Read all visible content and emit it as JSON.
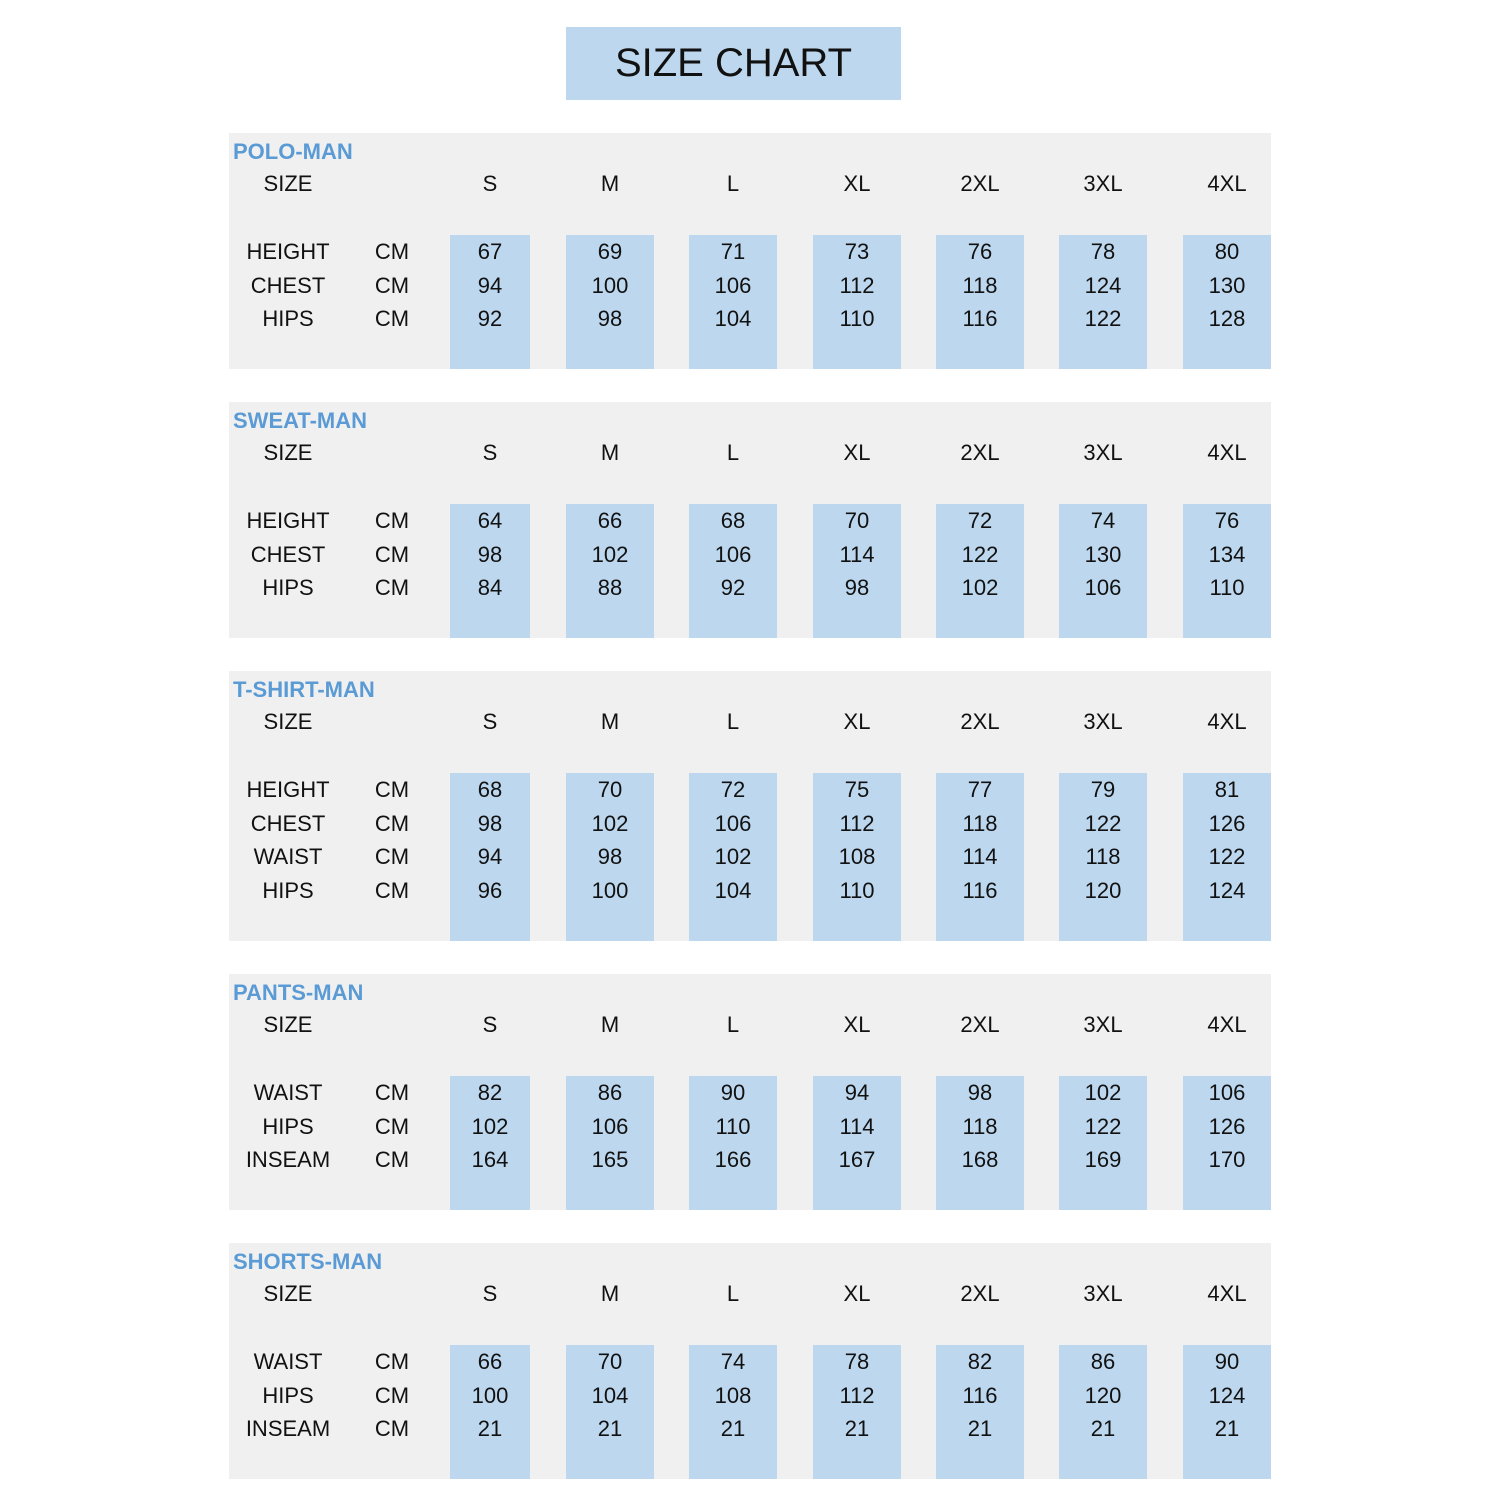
{
  "title": "SIZE CHART",
  "size_label": "SIZE",
  "sizes": [
    "S",
    "M",
    "L",
    "XL",
    "2XL",
    "3XL",
    "4XL"
  ],
  "colors": {
    "accent_blue": "#5b9bd5",
    "cell_blue": "#bdd7ee",
    "panel_gray": "#f0f0f0"
  },
  "sections": [
    {
      "name": "POLO-MAN",
      "rows": [
        {
          "label": "HEIGHT",
          "unit": "CM",
          "values": [
            "67",
            "69",
            "71",
            "73",
            "76",
            "78",
            "80"
          ]
        },
        {
          "label": "CHEST",
          "unit": "CM",
          "values": [
            "94",
            "100",
            "106",
            "112",
            "118",
            "124",
            "130"
          ]
        },
        {
          "label": "HIPS",
          "unit": "CM",
          "values": [
            "92",
            "98",
            "104",
            "110",
            "116",
            "122",
            "128"
          ]
        }
      ]
    },
    {
      "name": "SWEAT-MAN",
      "rows": [
        {
          "label": "HEIGHT",
          "unit": "CM",
          "values": [
            "64",
            "66",
            "68",
            "70",
            "72",
            "74",
            "76"
          ]
        },
        {
          "label": "CHEST",
          "unit": "CM",
          "values": [
            "98",
            "102",
            "106",
            "114",
            "122",
            "130",
            "134"
          ]
        },
        {
          "label": "HIPS",
          "unit": "CM",
          "values": [
            "84",
            "88",
            "92",
            "98",
            "102",
            "106",
            "110"
          ]
        }
      ]
    },
    {
      "name": "T-SHIRT-MAN",
      "rows": [
        {
          "label": "HEIGHT",
          "unit": "CM",
          "values": [
            "68",
            "70",
            "72",
            "75",
            "77",
            "79",
            "81"
          ]
        },
        {
          "label": "CHEST",
          "unit": "CM",
          "values": [
            "98",
            "102",
            "106",
            "112",
            "118",
            "122",
            "126"
          ]
        },
        {
          "label": "WAIST",
          "unit": "CM",
          "values": [
            "94",
            "98",
            "102",
            "108",
            "114",
            "118",
            "122"
          ]
        },
        {
          "label": "HIPS",
          "unit": "CM",
          "values": [
            "96",
            "100",
            "104",
            "110",
            "116",
            "120",
            "124"
          ]
        }
      ]
    },
    {
      "name": "PANTS-MAN",
      "rows": [
        {
          "label": "WAIST",
          "unit": "CM",
          "values": [
            "82",
            "86",
            "90",
            "94",
            "98",
            "102",
            "106"
          ]
        },
        {
          "label": "HIPS",
          "unit": "CM",
          "values": [
            "102",
            "106",
            "110",
            "114",
            "118",
            "122",
            "126"
          ]
        },
        {
          "label": "INSEAM",
          "unit": "CM",
          "values": [
            "164",
            "165",
            "166",
            "167",
            "168",
            "169",
            "170"
          ]
        }
      ]
    },
    {
      "name": "SHORTS-MAN",
      "rows": [
        {
          "label": "WAIST",
          "unit": "CM",
          "values": [
            "66",
            "70",
            "74",
            "78",
            "82",
            "86",
            "90"
          ]
        },
        {
          "label": "HIPS",
          "unit": "CM",
          "values": [
            "100",
            "104",
            "108",
            "112",
            "116",
            "120",
            "124"
          ]
        },
        {
          "label": "INSEAM",
          "unit": "CM",
          "values": [
            "21",
            "21",
            "21",
            "21",
            "21",
            "21",
            "21"
          ]
        }
      ]
    }
  ]
}
